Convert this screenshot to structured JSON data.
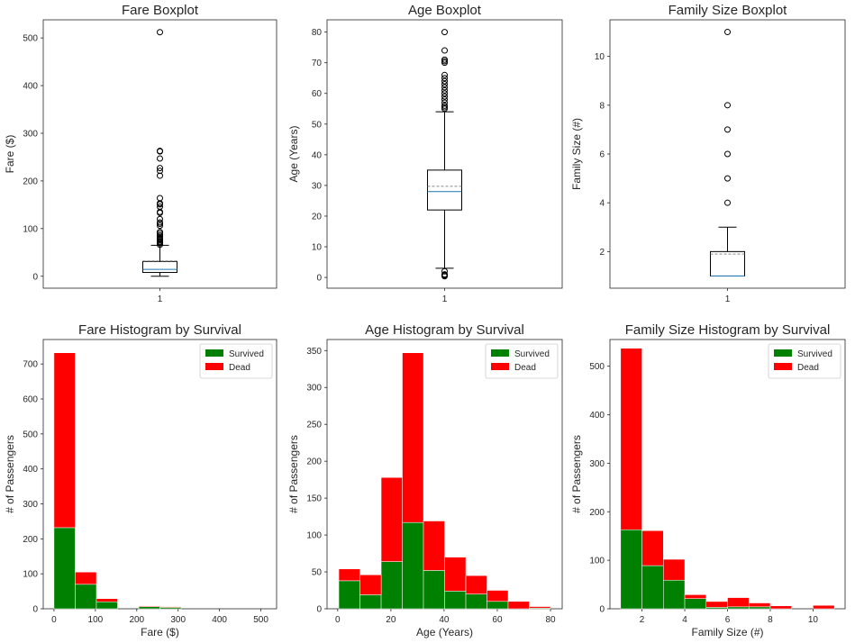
{
  "chart_data": [
    {
      "type": "boxplot",
      "title": "Fare Boxplot",
      "xlabel": "",
      "ylabel": "Fare ($)",
      "xtick_labels": [
        "1"
      ],
      "ylim": [
        -25,
        538
      ],
      "yticks": [
        0,
        100,
        200,
        300,
        400,
        500
      ],
      "box": {
        "whisker_low": 0,
        "q1": 8,
        "median": 14.5,
        "mean": 32.2,
        "q3": 31,
        "whisker_high": 65
      },
      "outliers": [
        66,
        69,
        71,
        73,
        76,
        78,
        80,
        83,
        86,
        90,
        93,
        106,
        110,
        113,
        120,
        133,
        135,
        146,
        151,
        153,
        164,
        211,
        221,
        227,
        247,
        262,
        263,
        512
      ]
    },
    {
      "type": "boxplot",
      "title": "Age Boxplot",
      "xlabel": "",
      "ylabel": "Age (Years)",
      "xtick_labels": [
        "1"
      ],
      "ylim": [
        -3.5,
        84
      ],
      "yticks": [
        0,
        10,
        20,
        30,
        40,
        50,
        60,
        70,
        80
      ],
      "box": {
        "whisker_low": 3,
        "q1": 22,
        "median": 28,
        "mean": 29.7,
        "q3": 35,
        "whisker_high": 54
      },
      "outliers": [
        0.4,
        0.7,
        0.8,
        1,
        2,
        55,
        55.5,
        56,
        57,
        58,
        59,
        60,
        61,
        62,
        63,
        64,
        65,
        66,
        70,
        70.5,
        71,
        74,
        80
      ]
    },
    {
      "type": "boxplot",
      "title": "Family Size Boxplot",
      "xlabel": "",
      "ylabel": "Family Size (#)",
      "xtick_labels": [
        "1"
      ],
      "ylim": [
        0.5,
        11.5
      ],
      "yticks": [
        2,
        4,
        6,
        8,
        10
      ],
      "box": {
        "whisker_low": 1,
        "q1": 1,
        "median": 1,
        "mean": 1.9,
        "q3": 2,
        "whisker_high": 3
      },
      "outliers": [
        4,
        5,
        6,
        7,
        8,
        11
      ]
    },
    {
      "type": "stacked-histogram",
      "title": "Fare Histogram by Survival",
      "xlabel": "Fare ($)",
      "ylabel": "# of Passengers",
      "xlim": [
        -26,
        538
      ],
      "ylim": [
        0,
        770
      ],
      "xticks": [
        0,
        100,
        200,
        300,
        400,
        500
      ],
      "yticks": [
        0,
        100,
        200,
        300,
        400,
        500,
        600,
        700
      ],
      "bin_edges": [
        0,
        51.2,
        102.5,
        153.7,
        204.9,
        256.2,
        307.4,
        358.6,
        409.9,
        461.1,
        512.3
      ],
      "series": [
        {
          "name": "Survived",
          "color": "#008000",
          "values": [
            232,
            70,
            20,
            0,
            6,
            4,
            0,
            0,
            0,
            0
          ]
        },
        {
          "name": "Dead",
          "color": "#ff0000",
          "values": [
            500,
            35,
            9,
            0,
            2,
            2,
            0,
            0,
            0,
            0
          ]
        }
      ],
      "legend": "top-right"
    },
    {
      "type": "stacked-histogram",
      "title": "Age Histogram by Survival",
      "xlabel": "Age (Years)",
      "ylabel": "# of Passengers",
      "xlim": [
        -4,
        84.4
      ],
      "ylim": [
        0,
        365
      ],
      "xticks": [
        0,
        20,
        40,
        60,
        80
      ],
      "yticks": [
        0,
        50,
        100,
        150,
        200,
        250,
        300,
        350
      ],
      "bin_edges": [
        0.42,
        8.38,
        16.34,
        24.29,
        32.25,
        40.21,
        48.17,
        56.13,
        64.08,
        72.04,
        80
      ],
      "series": [
        {
          "name": "Survived",
          "color": "#008000",
          "values": [
            38,
            19,
            64,
            117,
            52,
            24,
            20,
            10,
            0,
            1
          ]
        },
        {
          "name": "Dead",
          "color": "#ff0000",
          "values": [
            16,
            27,
            114,
            230,
            67,
            46,
            25,
            15,
            10,
            2
          ]
        }
      ],
      "legend": "top-right"
    },
    {
      "type": "stacked-histogram",
      "title": "Family Size Histogram by Survival",
      "xlabel": "Family Size (#)",
      "ylabel": "# of Passengers",
      "xlim": [
        0.5,
        11.5
      ],
      "ylim": [
        0,
        555
      ],
      "xticks": [
        2,
        4,
        6,
        8,
        10
      ],
      "yticks": [
        0,
        100,
        200,
        300,
        400,
        500
      ],
      "bin_edges": [
        1,
        2,
        3,
        4,
        5,
        6,
        7,
        8,
        9,
        10,
        11
      ],
      "series": [
        {
          "name": "Survived",
          "color": "#008000",
          "values": [
            163,
            89,
            59,
            21,
            3,
            4,
            4,
            0,
            0,
            0
          ]
        },
        {
          "name": "Dead",
          "color": "#ff0000",
          "values": [
            374,
            72,
            43,
            8,
            12,
            19,
            8,
            6,
            0,
            7
          ]
        }
      ],
      "legend": "top-right"
    }
  ]
}
